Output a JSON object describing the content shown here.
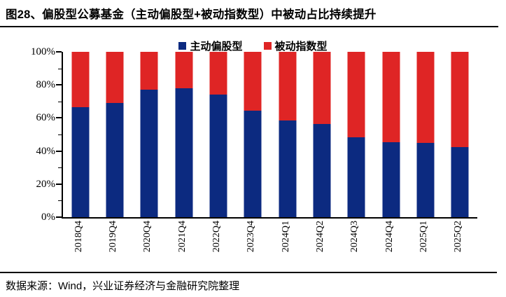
{
  "title": "图28、偏股型公募基金（主动偏股型+被动指数型）中被动占比持续提升",
  "source_note": "数据来源：Wind，兴业证券经济与金融研究院整理",
  "colors": {
    "active_blue": "#0C2A80",
    "passive_red": "#DF2525",
    "axis_black": "#000000",
    "background": "#ffffff"
  },
  "chart_data": {
    "type": "bar",
    "stacked": true,
    "title": "图28、偏股型公募基金（主动偏股型+被动指数型）中被动占比持续提升",
    "categories": [
      "2018Q4",
      "2019Q4",
      "2020Q4",
      "2021Q4",
      "2022Q4",
      "2023Q4",
      "2024Q1",
      "2024Q2",
      "2024Q3",
      "2024Q4",
      "2025Q1",
      "2025Q2"
    ],
    "series": [
      {
        "name": "主动偏股型",
        "color": "#0C2A80",
        "values": [
          66.5,
          69,
          77,
          78,
          74,
          64.5,
          58.5,
          56.5,
          48.5,
          45.5,
          45,
          42.5
        ]
      },
      {
        "name": "被动指数型",
        "color": "#DF2525",
        "values": [
          33.5,
          31,
          23,
          22,
          26,
          35.5,
          41.5,
          43.5,
          51.5,
          54.5,
          55,
          57.5
        ]
      }
    ],
    "xlabel": "",
    "ylabel": "",
    "ylim": [
      0,
      100
    ],
    "yticks_major": [
      0,
      20,
      40,
      60,
      80,
      100
    ],
    "yticks_minor": [
      10,
      30,
      50,
      70,
      90
    ],
    "ytick_labels": [
      "0%",
      "20%",
      "40%",
      "60%",
      "80%",
      "100%"
    ],
    "ytick_format": "percent",
    "grid": false,
    "legend_position": "top-center",
    "x_label_rotation": -90
  }
}
